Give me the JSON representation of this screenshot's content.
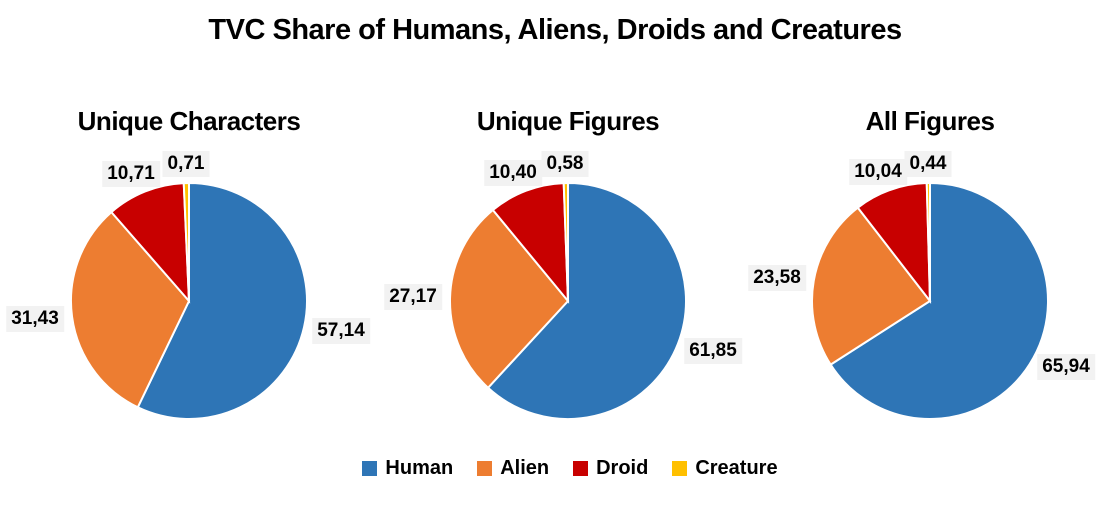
{
  "title": "TVC Share of Humans, Aliens, Droids and Creatures",
  "label_background": "#F2F2F2",
  "legend": {
    "position": "bottom",
    "items": [
      {
        "label": "Human",
        "color": "#2E75B6"
      },
      {
        "label": "Alien",
        "color": "#ED7D31"
      },
      {
        "label": "Droid",
        "color": "#C80000"
      },
      {
        "label": "Creature",
        "color": "#FFC000"
      }
    ]
  },
  "chart_data": [
    {
      "type": "pie",
      "title": "Unique Characters",
      "categories": [
        "Human",
        "Alien",
        "Droid",
        "Creature"
      ],
      "values": [
        57.14,
        31.43,
        10.71,
        0.71
      ],
      "value_labels": [
        "57,14",
        "31,43",
        "10,71",
        "0,71"
      ],
      "colors": [
        "#2E75B6",
        "#ED7D31",
        "#C80000",
        "#FFC000"
      ],
      "start_angle_deg": 0,
      "direction": "clockwise",
      "labels_position": "outside-end"
    },
    {
      "type": "pie",
      "title": "Unique Figures",
      "categories": [
        "Human",
        "Alien",
        "Droid",
        "Creature"
      ],
      "values": [
        61.85,
        27.17,
        10.4,
        0.58
      ],
      "value_labels": [
        "61,85",
        "27,17",
        "10,40",
        "0,58"
      ],
      "colors": [
        "#2E75B6",
        "#ED7D31",
        "#C80000",
        "#FFC000"
      ],
      "start_angle_deg": 0,
      "direction": "clockwise",
      "labels_position": "outside-end"
    },
    {
      "type": "pie",
      "title": "All Figures",
      "categories": [
        "Human",
        "Alien",
        "Droid",
        "Creature"
      ],
      "values": [
        65.94,
        23.58,
        10.04,
        0.44
      ],
      "value_labels": [
        "65,94",
        "23,58",
        "10,04",
        "0,44"
      ],
      "colors": [
        "#2E75B6",
        "#ED7D31",
        "#C80000",
        "#FFC000"
      ],
      "start_angle_deg": 0,
      "direction": "clockwise",
      "labels_position": "outside-end"
    }
  ]
}
